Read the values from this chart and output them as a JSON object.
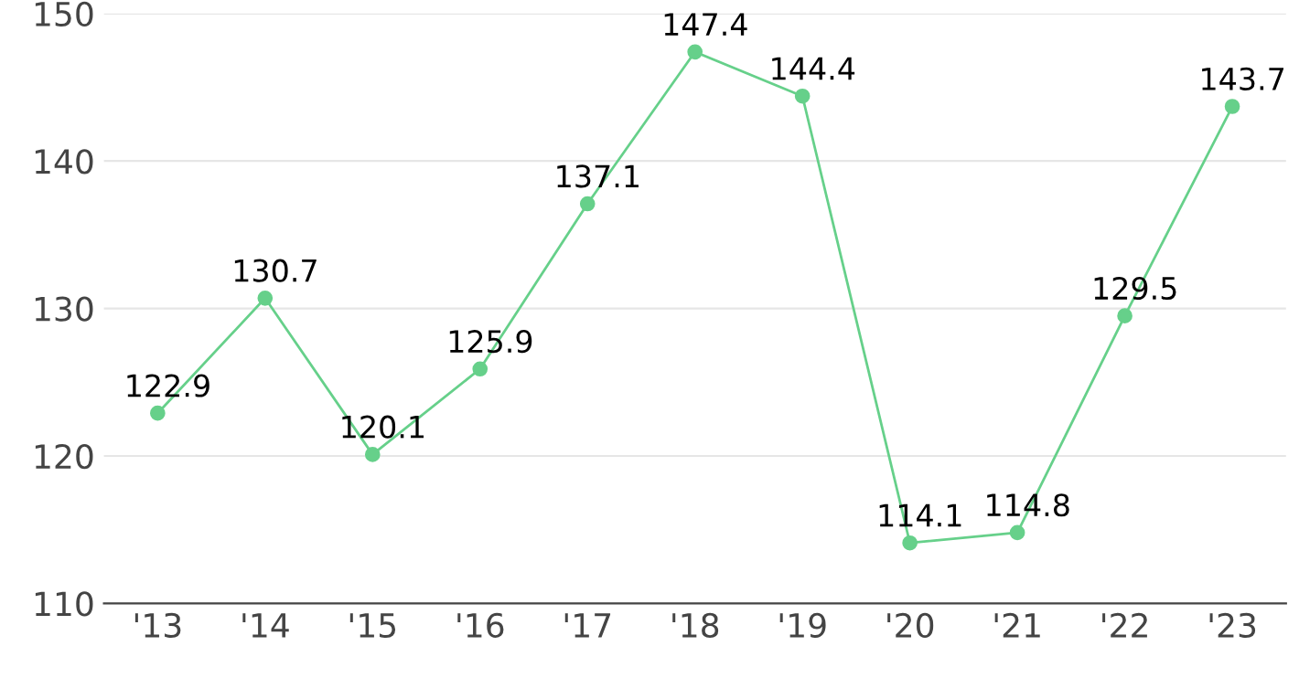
{
  "chart_data": {
    "type": "line",
    "categories": [
      "'13",
      "'14",
      "'15",
      "'16",
      "'17",
      "'18",
      "'19",
      "'20",
      "'21",
      "'22",
      "'23"
    ],
    "series": [
      {
        "color": "#66d08a",
        "values": [
          122.9,
          130.7,
          120.1,
          125.9,
          137.1,
          147.4,
          144.4,
          114.1,
          114.8,
          129.5,
          143.7
        ]
      }
    ],
    "ylim": [
      110,
      150
    ],
    "yticks": [
      110,
      120,
      130,
      140,
      150
    ],
    "grid": "y",
    "marker": "circle",
    "line_style": "solid",
    "data_labels": true
  }
}
